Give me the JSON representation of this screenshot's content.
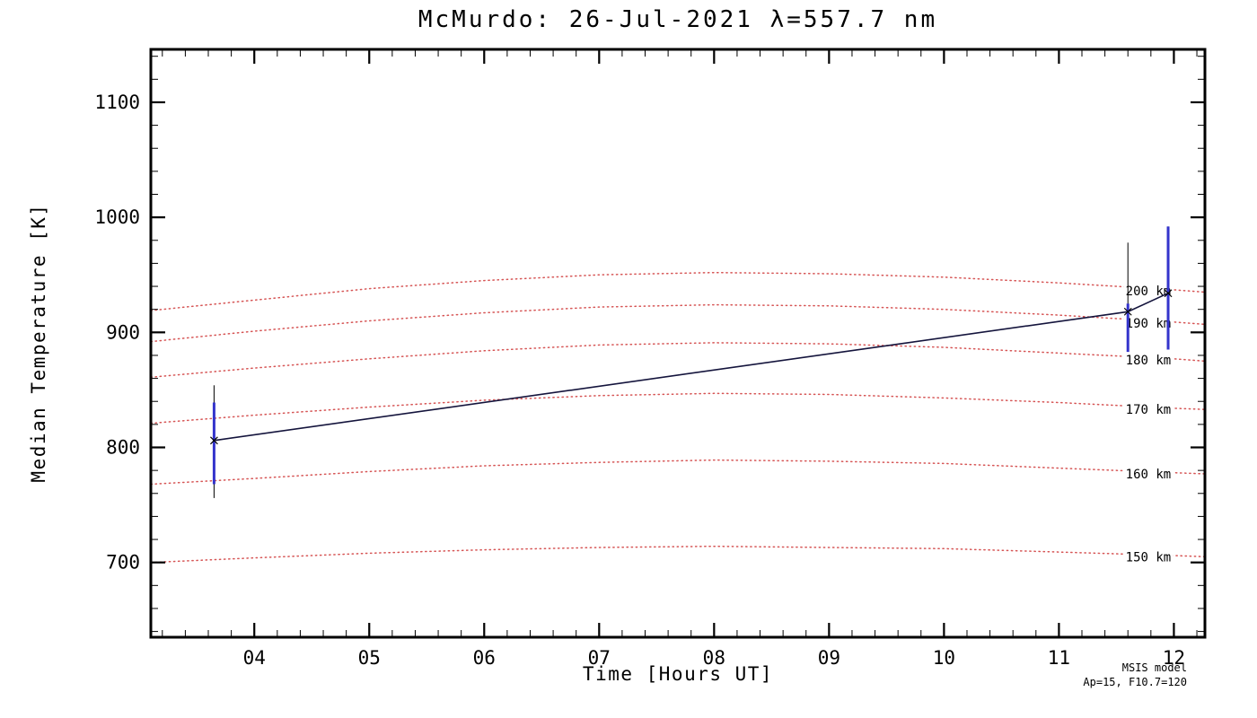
{
  "page": {
    "background": "#ffffff"
  },
  "chart_data": {
    "type": "line",
    "title": "McMurdo: 26-Jul-2021 λ=557.7 nm",
    "xlabel": "Time [Hours UT]",
    "ylabel": "Median Temperature [K]",
    "xlim": [
      3.1,
      12.27
    ],
    "ylim": [
      635,
      1146
    ],
    "xticks": [
      4,
      5,
      6,
      7,
      8,
      9,
      10,
      11,
      12
    ],
    "xtick_labels": [
      "04",
      "05",
      "06",
      "07",
      "08",
      "09",
      "10",
      "11",
      "12"
    ],
    "yticks": [
      700,
      800,
      900,
      1000,
      1100
    ],
    "ytick_labels": [
      "700",
      "800",
      "900",
      "1000",
      "1100"
    ],
    "x_minor_step": 0.2,
    "y_minor_step": 20,
    "grid": false,
    "legend": "none",
    "colors": {
      "series": "#14143c",
      "error_black": "#000000",
      "error_blue": "#3434cc",
      "model": "#cc2a2a",
      "frame": "#000000"
    },
    "series": [
      {
        "name": "median temperature",
        "points": [
          {
            "x": 3.65,
            "y": 806,
            "err_black": [
              756,
              854
            ],
            "err_blue": [
              768,
              839
            ]
          },
          {
            "x": 11.6,
            "y": 918,
            "err_black": [
              885,
              978
            ],
            "err_blue": [
              883,
              925
            ]
          },
          {
            "x": 11.95,
            "y": 934,
            "err_black": [
              885,
              992
            ],
            "err_blue": [
              885,
              992
            ]
          }
        ]
      }
    ],
    "model_x": [
      3.1,
      4,
      5,
      6,
      7,
      8,
      9,
      10,
      11,
      12,
      12.27
    ],
    "model_label_x": 11.58,
    "model_curves": [
      {
        "label": "200 km",
        "label_y": 936,
        "y": [
          919,
          928,
          938,
          945,
          950,
          952,
          951,
          948,
          943,
          937,
          935
        ]
      },
      {
        "label": "190 km",
        "label_y": 908,
        "y": [
          892,
          901,
          910,
          917,
          922,
          924,
          923,
          920,
          915,
          909,
          907
        ]
      },
      {
        "label": "180 km",
        "label_y": 876,
        "y": [
          861,
          869,
          877,
          884,
          889,
          891,
          890,
          887,
          882,
          877,
          875
        ]
      },
      {
        "label": "170 km",
        "label_y": 833,
        "y": [
          821,
          828,
          835,
          841,
          845,
          847,
          846,
          843,
          839,
          834,
          833
        ]
      },
      {
        "label": "160 km",
        "label_y": 777,
        "y": [
          768,
          773,
          779,
          784,
          787,
          789,
          788,
          786,
          782,
          778,
          777
        ]
      },
      {
        "label": "150 km",
        "label_y": 705,
        "y": [
          700,
          704,
          708,
          711,
          713,
          714,
          713,
          712,
          709,
          706,
          705
        ]
      }
    ],
    "annotations": {
      "line1": "MSIS model",
      "line2": "Ap=15, F10.7=120"
    }
  }
}
